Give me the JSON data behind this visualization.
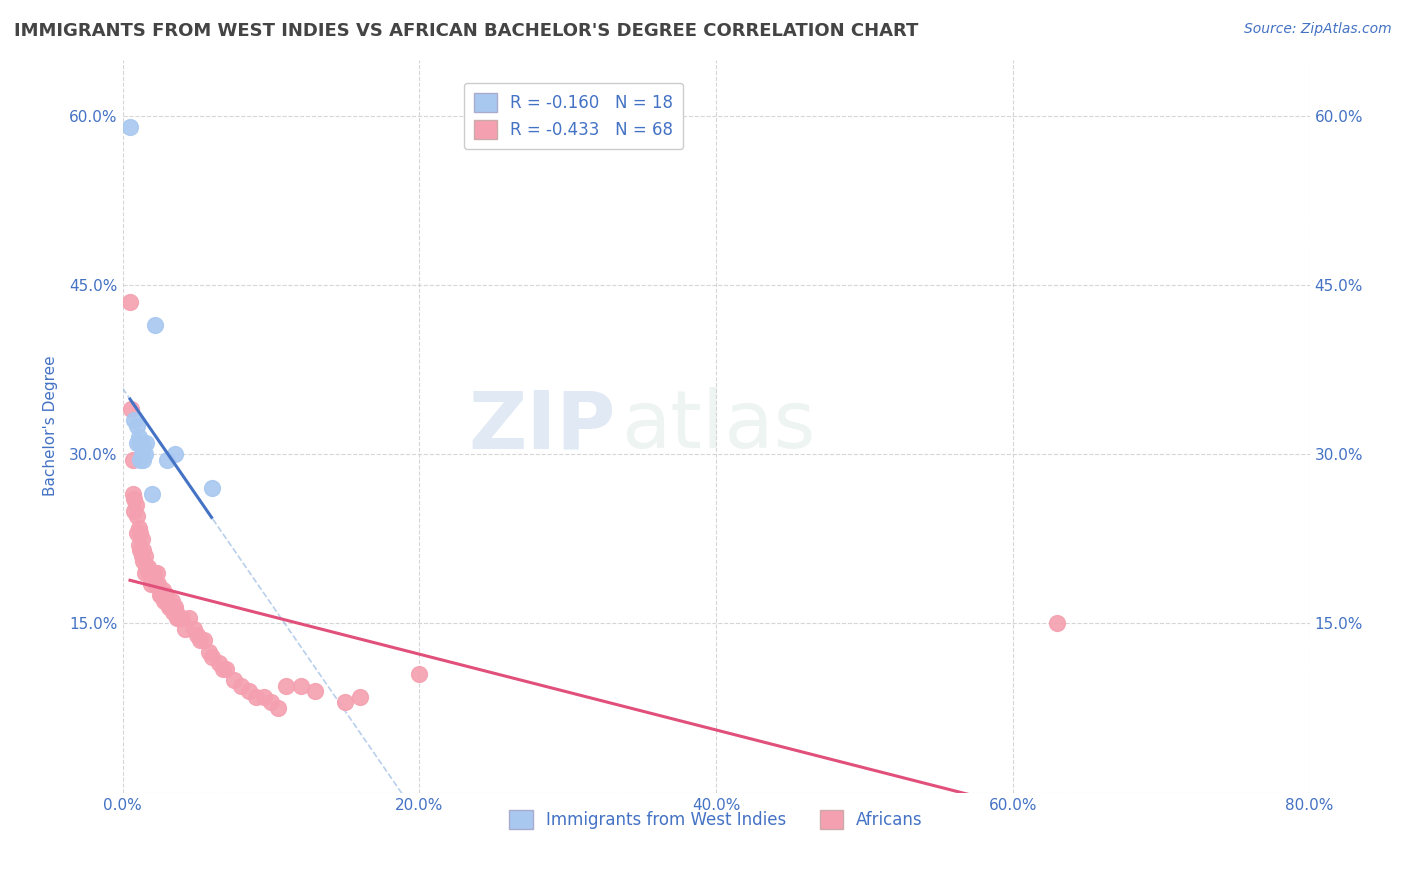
{
  "title": "IMMIGRANTS FROM WEST INDIES VS AFRICAN BACHELOR'S DEGREE CORRELATION CHART",
  "source": "Source: ZipAtlas.com",
  "ylabel": "Bachelor's Degree",
  "xlim": [
    0.0,
    0.8
  ],
  "ylim": [
    0.0,
    0.65
  ],
  "xticks": [
    0.0,
    0.2,
    0.4,
    0.6,
    0.8
  ],
  "xtick_labels": [
    "0.0%",
    "20.0%",
    "40.0%",
    "60.0%",
    "80.0%"
  ],
  "yticks_left": [
    0.0,
    0.15,
    0.3,
    0.45,
    0.6
  ],
  "ytick_labels_left": [
    "",
    "15.0%",
    "30.0%",
    "45.0%",
    "60.0%"
  ],
  "yticks_right": [
    0.15,
    0.3,
    0.45,
    0.6
  ],
  "ytick_labels_right": [
    "15.0%",
    "30.0%",
    "45.0%",
    "60.0%"
  ],
  "west_indies_x": [
    0.005,
    0.008,
    0.01,
    0.01,
    0.011,
    0.012,
    0.012,
    0.013,
    0.013,
    0.014,
    0.014,
    0.015,
    0.016,
    0.02,
    0.022,
    0.03,
    0.035,
    0.06
  ],
  "west_indies_y": [
    0.59,
    0.33,
    0.325,
    0.31,
    0.315,
    0.31,
    0.295,
    0.31,
    0.3,
    0.308,
    0.295,
    0.3,
    0.31,
    0.265,
    0.415,
    0.295,
    0.3,
    0.27
  ],
  "africans_x": [
    0.005,
    0.006,
    0.007,
    0.007,
    0.008,
    0.008,
    0.009,
    0.01,
    0.01,
    0.011,
    0.011,
    0.012,
    0.012,
    0.013,
    0.013,
    0.014,
    0.014,
    0.015,
    0.015,
    0.016,
    0.017,
    0.018,
    0.019,
    0.02,
    0.021,
    0.022,
    0.023,
    0.024,
    0.025,
    0.026,
    0.027,
    0.028,
    0.029,
    0.03,
    0.031,
    0.032,
    0.033,
    0.034,
    0.035,
    0.036,
    0.037,
    0.038,
    0.04,
    0.042,
    0.045,
    0.048,
    0.05,
    0.052,
    0.055,
    0.058,
    0.06,
    0.065,
    0.068,
    0.07,
    0.075,
    0.08,
    0.085,
    0.09,
    0.095,
    0.1,
    0.105,
    0.11,
    0.12,
    0.13,
    0.15,
    0.16,
    0.2,
    0.63
  ],
  "africans_y": [
    0.435,
    0.34,
    0.295,
    0.265,
    0.26,
    0.25,
    0.255,
    0.245,
    0.23,
    0.235,
    0.22,
    0.23,
    0.215,
    0.225,
    0.21,
    0.215,
    0.205,
    0.21,
    0.195,
    0.2,
    0.2,
    0.195,
    0.185,
    0.195,
    0.195,
    0.185,
    0.195,
    0.185,
    0.175,
    0.175,
    0.18,
    0.17,
    0.175,
    0.17,
    0.165,
    0.165,
    0.17,
    0.16,
    0.165,
    0.16,
    0.155,
    0.155,
    0.155,
    0.145,
    0.155,
    0.145,
    0.14,
    0.135,
    0.135,
    0.125,
    0.12,
    0.115,
    0.11,
    0.11,
    0.1,
    0.095,
    0.09,
    0.085,
    0.085,
    0.08,
    0.075,
    0.095,
    0.095,
    0.09,
    0.08,
    0.085,
    0.105,
    0.15
  ],
  "wi_color": "#a8c8f0",
  "af_color": "#f4a0b0",
  "wi_line_color": "#4472c4",
  "af_line_color": "#e0507a",
  "wi_dashed_color": "#8ab0e0",
  "wi_R": -0.16,
  "wi_N": 18,
  "af_R": -0.433,
  "af_N": 68,
  "legend_label_wi": "Immigrants from West Indies",
  "legend_label_af": "Africans",
  "watermark_zip": "ZIP",
  "watermark_atlas": "atlas",
  "background_color": "#ffffff",
  "grid_color": "#cccccc",
  "title_color": "#444444",
  "axis_label_color": "#4472c4",
  "tick_color": "#4472c4"
}
